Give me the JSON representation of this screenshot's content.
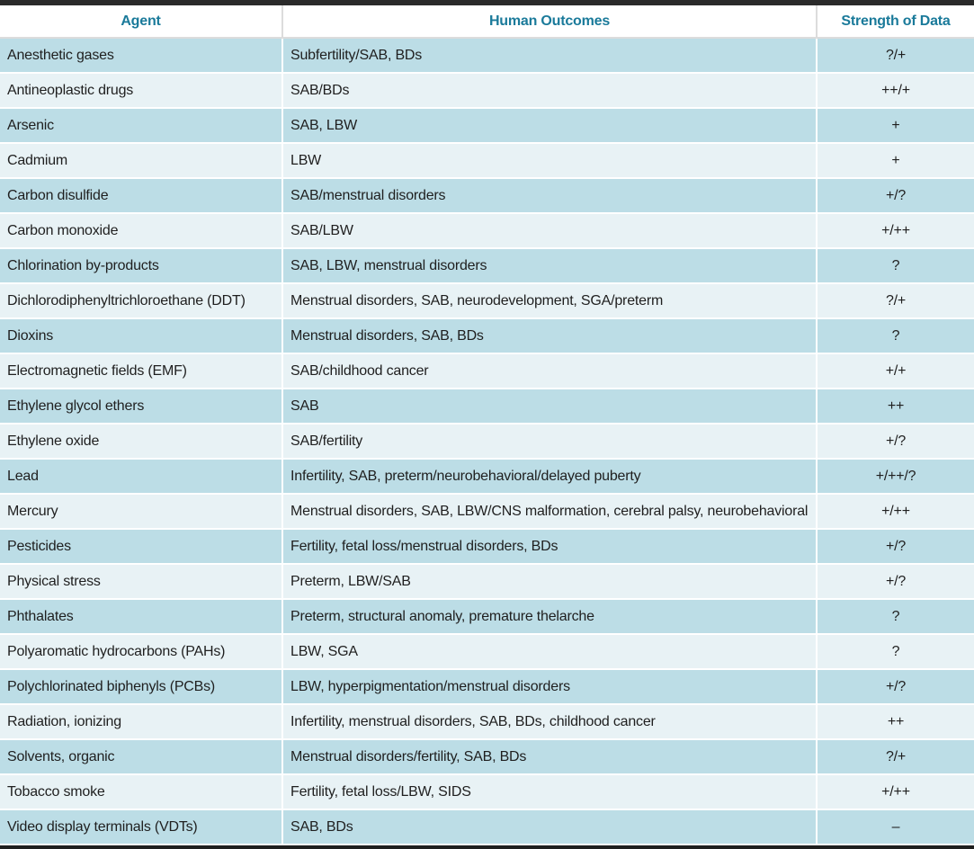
{
  "table": {
    "headers": {
      "agent": "Agent",
      "outcomes": "Human Outcomes",
      "strength": "Strength of Data"
    },
    "rows": [
      {
        "agent": "Anesthetic gases",
        "outcomes": "Subfertility/SAB, BDs",
        "strength": "?/+"
      },
      {
        "agent": "Antineoplastic drugs",
        "outcomes": "SAB/BDs",
        "strength": "++/+"
      },
      {
        "agent": "Arsenic",
        "outcomes": "SAB, LBW",
        "strength": "+"
      },
      {
        "agent": "Cadmium",
        "outcomes": "LBW",
        "strength": "+"
      },
      {
        "agent": "Carbon disulfide",
        "outcomes": "SAB/menstrual disorders",
        "strength": "+/?"
      },
      {
        "agent": "Carbon monoxide",
        "outcomes": "SAB/LBW",
        "strength": "+/++"
      },
      {
        "agent": "Chlorination by-products",
        "outcomes": "SAB, LBW, menstrual disorders",
        "strength": "?"
      },
      {
        "agent": "Dichlorodiphenyltrichloroethane (DDT)",
        "outcomes": "Menstrual disorders, SAB, neurodevelopment, SGA/preterm",
        "strength": "?/+"
      },
      {
        "agent": "Dioxins",
        "outcomes": "Menstrual disorders, SAB, BDs",
        "strength": "?"
      },
      {
        "agent": "Electromagnetic fields (EMF)",
        "outcomes": "SAB/childhood cancer",
        "strength": "+/+"
      },
      {
        "agent": "Ethylene glycol ethers",
        "outcomes": "SAB",
        "strength": "++"
      },
      {
        "agent": "Ethylene oxide",
        "outcomes": "SAB/fertility",
        "strength": "+/?"
      },
      {
        "agent": "Lead",
        "outcomes": "Infertility, SAB, preterm/neurobehavioral/delayed puberty",
        "strength": "+/++/?"
      },
      {
        "agent": "Mercury",
        "outcomes": "Menstrual disorders, SAB, LBW/CNS malformation, cerebral palsy, neurobehavioral",
        "strength": "+/++"
      },
      {
        "agent": "Pesticides",
        "outcomes": "Fertility, fetal loss/menstrual disorders, BDs",
        "strength": "+/?"
      },
      {
        "agent": "Physical stress",
        "outcomes": "Preterm, LBW/SAB",
        "strength": "+/?"
      },
      {
        "agent": "Phthalates",
        "outcomes": "Preterm, structural anomaly, premature thelarche",
        "strength": "?"
      },
      {
        "agent": "Polyaromatic hydrocarbons (PAHs)",
        "outcomes": "LBW, SGA",
        "strength": "?"
      },
      {
        "agent": "Polychlorinated biphenyls (PCBs)",
        "outcomes": "LBW, hyperpigmentation/menstrual disorders",
        "strength": "+/?"
      },
      {
        "agent": "Radiation, ionizing",
        "outcomes": "Infertility, menstrual disorders, SAB, BDs, childhood cancer",
        "strength": "++"
      },
      {
        "agent": "Solvents, organic",
        "outcomes": "Menstrual disorders/fertility, SAB, BDs",
        "strength": "?/+"
      },
      {
        "agent": "Tobacco smoke",
        "outcomes": "Fertility, fetal loss/LBW, SIDS",
        "strength": "+/++"
      },
      {
        "agent": "Video display terminals (VDTs)",
        "outcomes": "SAB, BDs",
        "strength": "–"
      }
    ]
  },
  "colors": {
    "header_text": "#1a7a9a",
    "row_dark": "#bcdde6",
    "row_light": "#e8f2f5",
    "frame": "#1e1e1e"
  }
}
